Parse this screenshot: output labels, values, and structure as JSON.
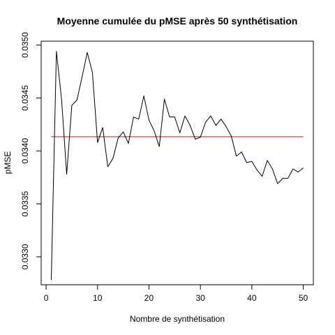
{
  "chart_data": {
    "type": "line",
    "title": "Moyenne cumulée du pMSE après 50 synthétisation",
    "xlabel": "Nombre de synthétisation",
    "ylabel": "pMSE",
    "xlim": [
      -0.96,
      51.96
    ],
    "ylim": [
      0.032736,
      0.035036
    ],
    "xticks": [
      0,
      10,
      20,
      30,
      40,
      50
    ],
    "yticks": [
      0.033,
      0.0335,
      0.034,
      0.0345,
      0.035
    ],
    "ytick_labels": [
      "0.0330",
      "0.0335",
      "0.0340",
      "0.0345",
      "0.0350"
    ],
    "grid": false,
    "series": [
      {
        "color": "#000000",
        "x": [
          1,
          2,
          3,
          4,
          5,
          6,
          7,
          8,
          9,
          10,
          11,
          12,
          13,
          14,
          15,
          16,
          17,
          18,
          19,
          20,
          21,
          22,
          23,
          24,
          25,
          26,
          27,
          28,
          29,
          30,
          31,
          32,
          33,
          34,
          35,
          36,
          37,
          38,
          39,
          40,
          41,
          42,
          43,
          44,
          45,
          46,
          47,
          48,
          49,
          50
        ],
        "y": [
          0.03278,
          0.03494,
          0.03449,
          0.03378,
          0.03443,
          0.03448,
          0.0347,
          0.03493,
          0.03474,
          0.03408,
          0.03422,
          0.03385,
          0.03393,
          0.03412,
          0.03418,
          0.03407,
          0.03432,
          0.0343,
          0.03452,
          0.03429,
          0.03419,
          0.03404,
          0.03449,
          0.03432,
          0.03432,
          0.03417,
          0.03433,
          0.03424,
          0.03411,
          0.03413,
          0.03427,
          0.03433,
          0.03424,
          0.0343,
          0.03423,
          0.03414,
          0.03395,
          0.03399,
          0.03389,
          0.0339,
          0.03382,
          0.03376,
          0.03391,
          0.03383,
          0.03369,
          0.03374,
          0.03374,
          0.03383,
          0.0338,
          0.03384
        ]
      }
    ],
    "reference_line": {
      "x": [
        1,
        50
      ],
      "y": 0.034134,
      "color": "#ff0000"
    }
  }
}
